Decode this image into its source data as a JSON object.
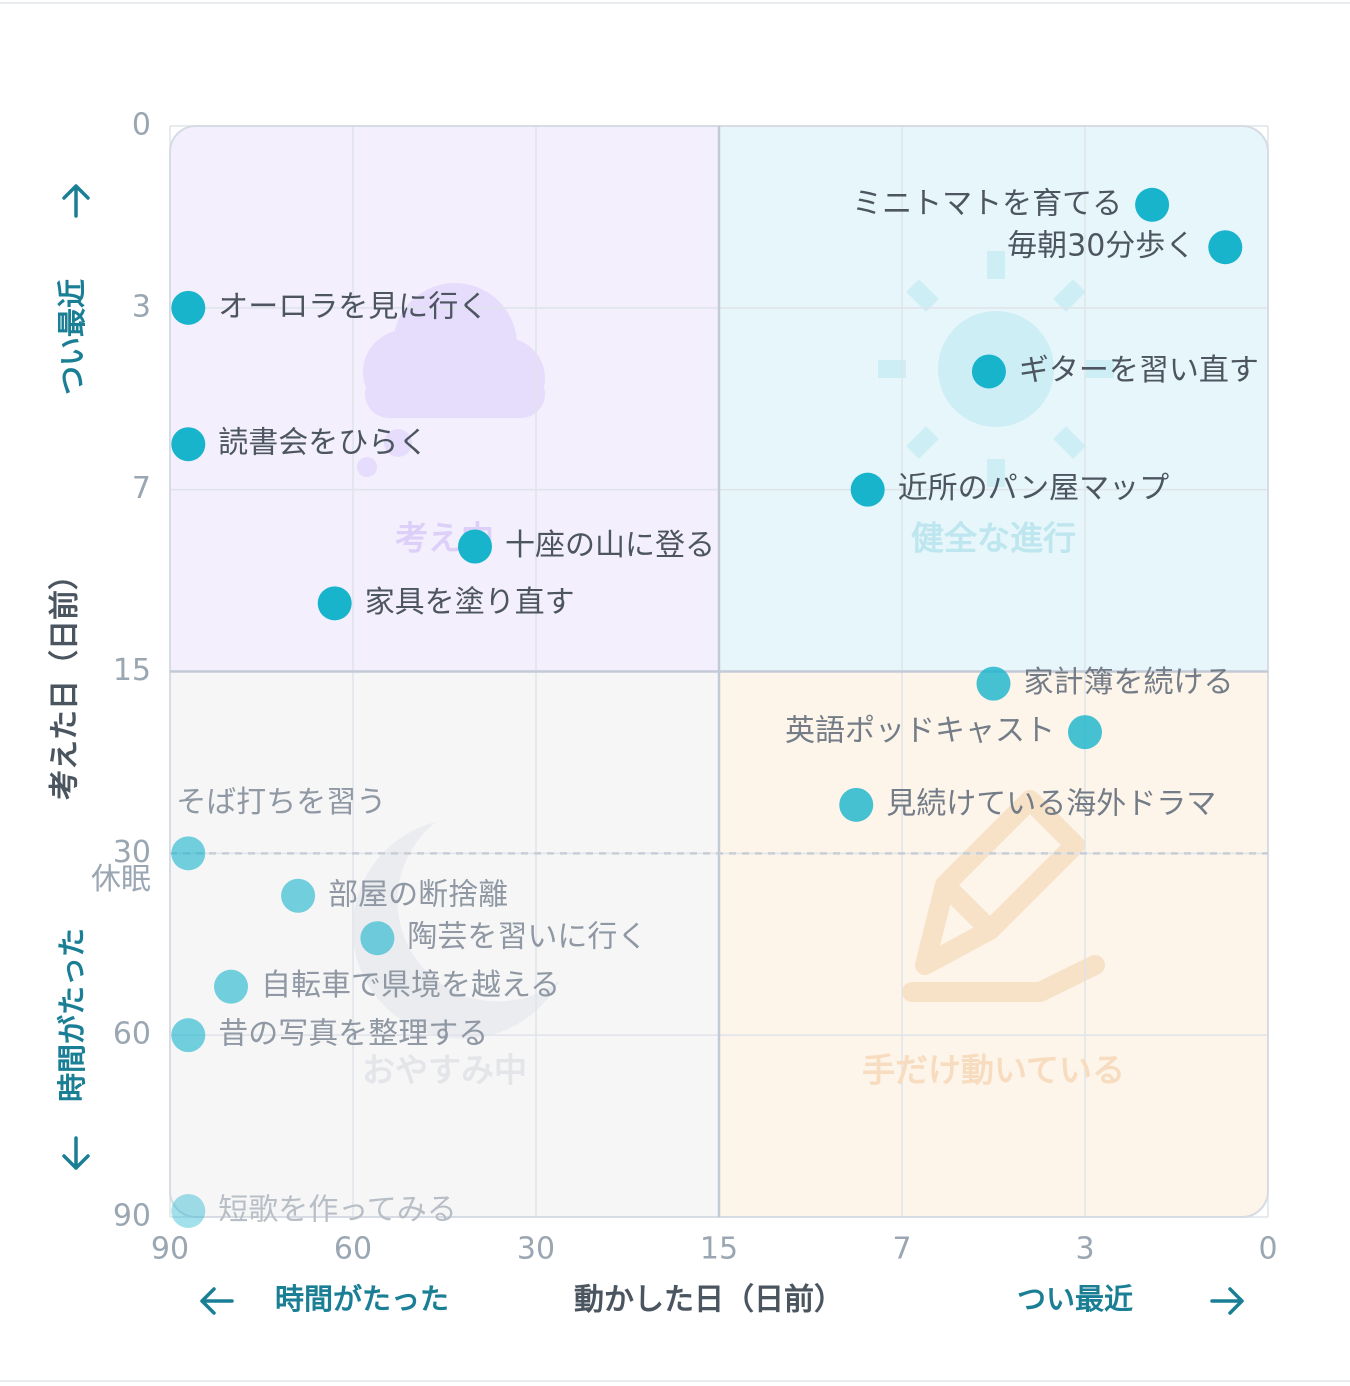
{
  "chart_data": {
    "type": "scatter",
    "xlabel": "動かした日（日前）",
    "ylabel": "考えた日（日前）",
    "x_ticks": [
      90,
      60,
      30,
      15,
      7,
      3,
      0
    ],
    "y_ticks": [
      0,
      3,
      7,
      15,
      30,
      60,
      90
    ],
    "x_direction_labels": {
      "left": "時間がたった",
      "right": "つい最近"
    },
    "y_direction_labels": {
      "top": "つい最近",
      "bottom": "時間がたった"
    },
    "threshold": {
      "value": 30,
      "label": "休眠"
    },
    "quadrants": [
      {
        "label": "考え中",
        "fill": "#f3effd",
        "label_color": "#dcd0f8",
        "icon": "cloud-icon"
      },
      {
        "label": "健全な進行",
        "fill": "#e7f6fa",
        "label_color": "#bde6ef",
        "icon": "sun-icon"
      },
      {
        "label": "おやすみ中",
        "fill": "#f6f6f7",
        "label_color": "#e3e5e8",
        "icon": "moon-icon"
      },
      {
        "label": "手だけ動いている",
        "fill": "#fdf4ea",
        "label_color": "#f7dcbf",
        "icon": "pencil-icon"
      }
    ],
    "points": [
      {
        "label": "ミニトマトを育てる",
        "x": 1.9,
        "y": 1.3
      },
      {
        "label": "毎朝30分歩く",
        "x": 0.7,
        "y": 2.0
      },
      {
        "label": "オーロラを見に行く",
        "x": 87,
        "y": 3.0
      },
      {
        "label": "ギターを習い直す",
        "x": 5.1,
        "y": 4.4
      },
      {
        "label": "読書会をひらく",
        "x": 87,
        "y": 6.0
      },
      {
        "label": "近所のパン屋マップ",
        "x": 8.5,
        "y": 7.0
      },
      {
        "label": "十座の山に登る",
        "x": 40,
        "y": 9.5
      },
      {
        "label": "家具を塗り直す",
        "x": 63,
        "y": 12.0
      },
      {
        "label": "家計簿を続ける",
        "x": 5.0,
        "y": 16.0
      },
      {
        "label": "英語ポッドキャスト",
        "x": 3.0,
        "y": 20.0
      },
      {
        "label": "見続けている海外ドラマ",
        "x": 9.0,
        "y": 26.0
      },
      {
        "label": "そば打ちを習う",
        "x": 87,
        "y": 30.0
      },
      {
        "label": "部屋の断捨離",
        "x": 69,
        "y": 37.0
      },
      {
        "label": "陶芸を習いに行く",
        "x": 56,
        "y": 44.0
      },
      {
        "label": "自転車で県境を越える",
        "x": 80,
        "y": 52.0
      },
      {
        "label": "昔の写真を整理する",
        "x": 87,
        "y": 60.0
      },
      {
        "label": "短歌を作ってみる",
        "x": 87,
        "y": 89.0
      }
    ],
    "colors": {
      "point": "#17b4cc",
      "grid": "#dfe3ea",
      "divider": "#c3c9d6"
    }
  }
}
